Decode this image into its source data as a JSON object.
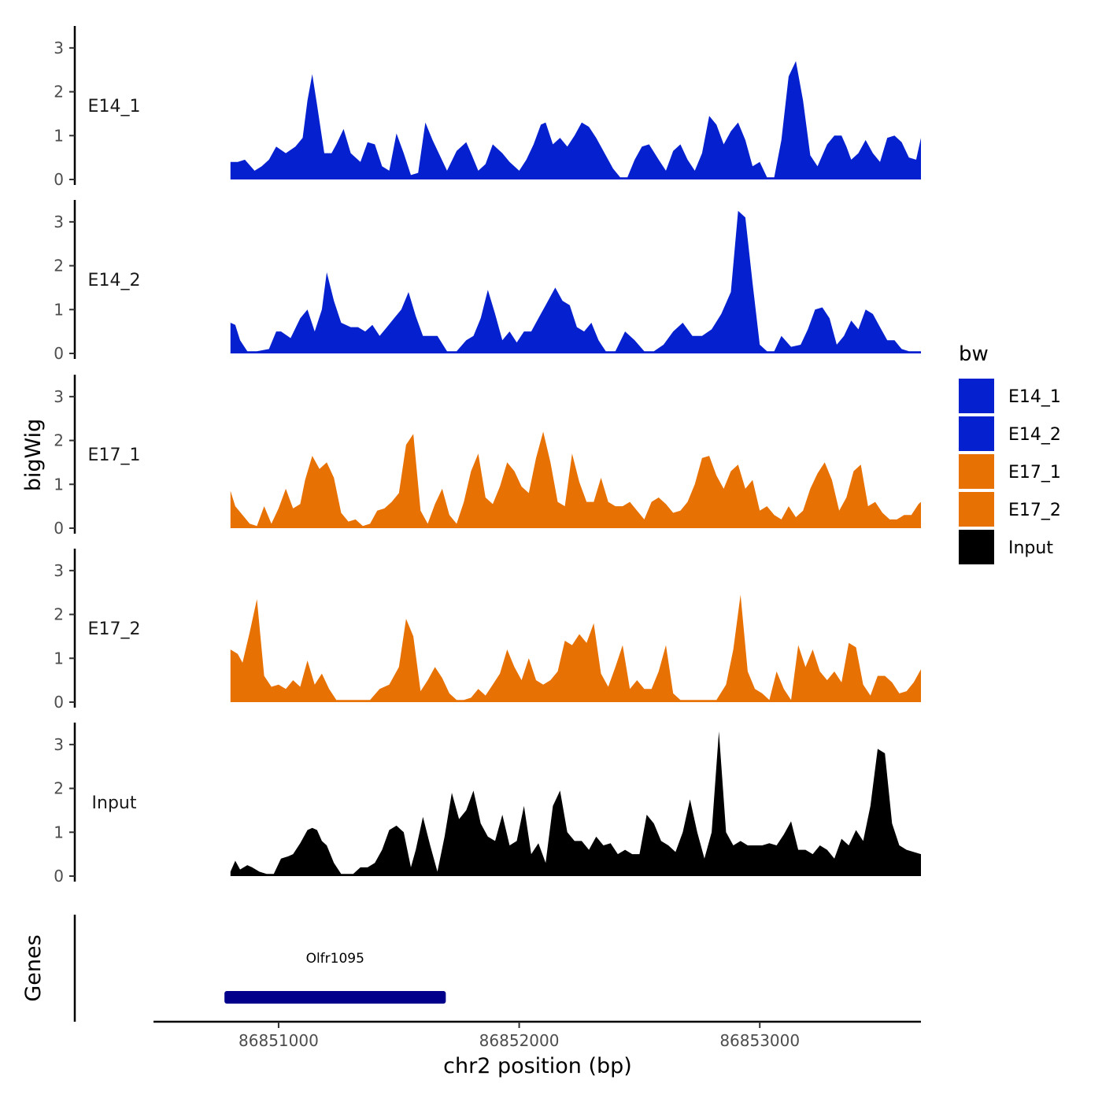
{
  "chart_data": {
    "type": "area",
    "layout": "stacked genome tracks",
    "chromosome": "chr2",
    "xlabel": "chr2 position (bp)",
    "ylabel": "bigWig",
    "genes_panel_label": "Genes",
    "xlim": [
      86850480,
      86853670
    ],
    "xticks": [
      86851000,
      86852000,
      86853000
    ],
    "xtick_labels": [
      "86851000",
      "86852000",
      "86853000"
    ],
    "ylim": [
      0,
      3.5
    ],
    "yticks": [
      0,
      1,
      2,
      3
    ],
    "ytick_labels": [
      "0",
      "1",
      "2",
      "3"
    ],
    "legend": {
      "title": "bw",
      "position": "right",
      "entries": [
        {
          "label": "E14_1",
          "color": "#0420CF"
        },
        {
          "label": "E14_2",
          "color": "#0420CF"
        },
        {
          "label": "E17_1",
          "color": "#E87103"
        },
        {
          "label": "E17_2",
          "color": "#E87103"
        },
        {
          "label": "Input",
          "color": "#000000"
        }
      ]
    },
    "series": [
      {
        "name": "E14_1",
        "color": "#0420CF",
        "x": [
          86850800,
          86850830,
          86850860,
          86850900,
          86850930,
          86850960,
          86850990,
          86851030,
          86851070,
          86851100,
          86851120,
          86851140,
          86851160,
          86851190,
          86851220,
          86851240,
          86851270,
          86851300,
          86851340,
          86851370,
          86851400,
          86851430,
          86851460,
          86851490,
          86851520,
          86851550,
          86851580,
          86851610,
          86851640,
          86851670,
          86851700,
          86851740,
          86851780,
          86851800,
          86851830,
          86851860,
          86851890,
          86851930,
          86851960,
          86852000,
          86852030,
          86852060,
          86852090,
          86852110,
          86852140,
          86852170,
          86852200,
          86852230,
          86852260,
          86852290,
          86852320,
          86852360,
          86852390,
          86852420,
          86852450,
          86852480,
          86852510,
          86852540,
          86852580,
          86852610,
          86852640,
          86852670,
          86852700,
          86852730,
          86852760,
          86852790,
          86852820,
          86852850,
          86852880,
          86852910,
          86852940,
          86852970,
          86853000,
          86853030,
          86853060,
          86853090,
          86853120,
          86853150,
          86853180,
          86853210,
          86853240,
          86853280,
          86853310,
          86853340,
          86853360,
          86853380,
          86853410,
          86853440,
          86853470,
          86853500,
          86853530,
          86853560,
          86853590,
          86853620,
          86853650,
          86853670
        ],
        "values": [
          0.4,
          0.4,
          0.45,
          0.2,
          0.3,
          0.45,
          0.75,
          0.6,
          0.75,
          0.95,
          1.8,
          2.4,
          1.7,
          0.6,
          0.6,
          0.8,
          1.15,
          0.6,
          0.4,
          0.85,
          0.8,
          0.3,
          0.2,
          1.05,
          0.6,
          0.1,
          0.15,
          1.3,
          0.9,
          0.55,
          0.2,
          0.65,
          0.85,
          0.6,
          0.2,
          0.35,
          0.8,
          0.6,
          0.4,
          0.2,
          0.45,
          0.8,
          1.25,
          1.3,
          0.8,
          0.95,
          0.75,
          1.0,
          1.3,
          1.2,
          0.95,
          0.55,
          0.25,
          0.05,
          0.05,
          0.45,
          0.75,
          0.8,
          0.45,
          0.2,
          0.65,
          0.8,
          0.45,
          0.2,
          0.6,
          1.45,
          1.25,
          0.8,
          1.1,
          1.3,
          0.9,
          0.3,
          0.4,
          0.05,
          0.05,
          0.9,
          2.35,
          2.7,
          1.8,
          0.55,
          0.3,
          0.8,
          1.0,
          1.0,
          0.75,
          0.45,
          0.6,
          0.9,
          0.6,
          0.4,
          0.95,
          1.0,
          0.85,
          0.5,
          0.45,
          0.95
        ]
      },
      {
        "name": "E14_2",
        "color": "#0420CF",
        "x": [
          86850800,
          86850820,
          86850840,
          86850870,
          86850910,
          86850960,
          86850990,
          86851010,
          86851050,
          86851090,
          86851120,
          86851150,
          86851180,
          86851200,
          86851230,
          86851260,
          86851300,
          86851330,
          86851360,
          86851390,
          86851420,
          86851450,
          86851480,
          86851510,
          86851540,
          86851570,
          86851600,
          86851630,
          86851660,
          86851700,
          86851740,
          86851780,
          86851810,
          86851840,
          86851870,
          86851900,
          86851930,
          86851960,
          86851990,
          86852020,
          86852050,
          86852080,
          86852110,
          86852150,
          86852180,
          86852210,
          86852240,
          86852270,
          86852300,
          86852330,
          86852360,
          86852400,
          86852440,
          86852480,
          86852520,
          86852560,
          86852600,
          86852640,
          86852680,
          86852720,
          86852760,
          86852800,
          86852840,
          86852880,
          86852910,
          86852940,
          86852970,
          86853000,
          86853030,
          86853060,
          86853090,
          86853130,
          86853170,
          86853200,
          86853230,
          86853260,
          86853290,
          86853320,
          86853350,
          86853380,
          86853410,
          86853440,
          86853470,
          86853500,
          86853530,
          86853560,
          86853590,
          86853620,
          86853650,
          86853670
        ],
        "values": [
          0.7,
          0.65,
          0.3,
          0.05,
          0.05,
          0.1,
          0.5,
          0.5,
          0.35,
          0.8,
          1.0,
          0.5,
          1.0,
          1.85,
          1.2,
          0.7,
          0.6,
          0.6,
          0.5,
          0.65,
          0.4,
          0.6,
          0.8,
          1.0,
          1.4,
          0.85,
          0.4,
          0.4,
          0.4,
          0.05,
          0.05,
          0.3,
          0.4,
          0.8,
          1.45,
          0.9,
          0.3,
          0.5,
          0.25,
          0.5,
          0.5,
          0.8,
          1.1,
          1.5,
          1.2,
          1.1,
          0.6,
          0.5,
          0.7,
          0.3,
          0.05,
          0.05,
          0.5,
          0.3,
          0.05,
          0.05,
          0.2,
          0.5,
          0.7,
          0.4,
          0.4,
          0.55,
          0.9,
          1.4,
          3.25,
          3.1,
          1.6,
          0.2,
          0.05,
          0.05,
          0.4,
          0.15,
          0.2,
          0.55,
          1.0,
          1.05,
          0.8,
          0.2,
          0.4,
          0.75,
          0.55,
          1.0,
          0.9,
          0.6,
          0.3,
          0.3,
          0.1,
          0.05,
          0.05,
          0.05
        ]
      },
      {
        "name": "E17_1",
        "color": "#E87103",
        "x": [
          86850800,
          86850820,
          86850850,
          86850880,
          86850910,
          86850940,
          86850970,
          86851000,
          86851030,
          86851060,
          86851090,
          86851110,
          86851140,
          86851170,
          86851200,
          86851230,
          86851260,
          86851290,
          86851320,
          86851350,
          86851380,
          86851410,
          86851440,
          86851470,
          86851500,
          86851530,
          86851560,
          86851590,
          86851620,
          86851650,
          86851680,
          86851710,
          86851740,
          86851770,
          86851800,
          86851830,
          86851860,
          86851890,
          86851920,
          86851950,
          86851980,
          86852010,
          86852040,
          86852070,
          86852100,
          86852130,
          86852160,
          86852190,
          86852220,
          86852250,
          86852280,
          86852310,
          86852340,
          86852370,
          86852400,
          86852430,
          86852460,
          86852490,
          86852520,
          86852550,
          86852580,
          86852610,
          86852640,
          86852670,
          86852700,
          86852730,
          86852760,
          86852790,
          86852820,
          86852850,
          86852880,
          86852910,
          86852940,
          86852970,
          86853000,
          86853030,
          86853060,
          86853090,
          86853120,
          86853150,
          86853180,
          86853210,
          86853240,
          86853270,
          86853300,
          86853330,
          86853360,
          86853390,
          86853420,
          86853450,
          86853480,
          86853510,
          86853540,
          86853570,
          86853600,
          86853630,
          86853660,
          86853670
        ],
        "values": [
          0.85,
          0.5,
          0.3,
          0.1,
          0.05,
          0.5,
          0.1,
          0.45,
          0.9,
          0.45,
          0.55,
          1.1,
          1.65,
          1.35,
          1.5,
          1.15,
          0.35,
          0.15,
          0.2,
          0.05,
          0.1,
          0.4,
          0.45,
          0.6,
          0.8,
          1.9,
          2.15,
          0.4,
          0.1,
          0.55,
          0.9,
          0.3,
          0.1,
          0.6,
          1.3,
          1.7,
          0.7,
          0.55,
          0.95,
          1.5,
          1.3,
          0.95,
          0.8,
          1.6,
          2.2,
          1.5,
          0.6,
          0.5,
          1.7,
          1.05,
          0.6,
          0.6,
          1.15,
          0.6,
          0.5,
          0.5,
          0.6,
          0.4,
          0.2,
          0.6,
          0.7,
          0.55,
          0.35,
          0.4,
          0.6,
          1.0,
          1.6,
          1.65,
          1.2,
          0.9,
          1.3,
          1.45,
          0.9,
          1.1,
          0.4,
          0.5,
          0.3,
          0.2,
          0.5,
          0.25,
          0.4,
          0.9,
          1.25,
          1.5,
          1.1,
          0.4,
          0.7,
          1.3,
          1.45,
          0.5,
          0.6,
          0.35,
          0.2,
          0.2,
          0.3,
          0.3,
          0.55,
          0.6
        ]
      },
      {
        "name": "E17_2",
        "color": "#E87103",
        "x": [
          86850800,
          86850830,
          86850850,
          86850880,
          86850910,
          86850940,
          86850970,
          86851000,
          86851030,
          86851060,
          86851090,
          86851120,
          86851150,
          86851180,
          86851210,
          86851240,
          86851270,
          86851300,
          86851340,
          86851380,
          86851420,
          86851460,
          86851500,
          86851530,
          86851560,
          86851590,
          86851620,
          86851650,
          86851680,
          86851710,
          86851740,
          86851770,
          86851800,
          86851830,
          86851860,
          86851890,
          86851920,
          86851950,
          86851980,
          86852010,
          86852040,
          86852070,
          86852100,
          86852130,
          86852160,
          86852190,
          86852220,
          86852250,
          86852280,
          86852310,
          86852340,
          86852370,
          86852400,
          86852430,
          86852460,
          86852490,
          86852520,
          86852550,
          86852580,
          86852610,
          86852640,
          86852670,
          86852700,
          86852740,
          86852780,
          86852820,
          86852860,
          86852890,
          86852920,
          86852950,
          86852980,
          86853010,
          86853040,
          86853070,
          86853100,
          86853130,
          86853160,
          86853190,
          86853220,
          86853250,
          86853280,
          86853310,
          86853340,
          86853370,
          86853400,
          86853430,
          86853460,
          86853490,
          86853520,
          86853550,
          86853580,
          86853610,
          86853640,
          86853670
        ],
        "values": [
          1.2,
          1.1,
          0.9,
          1.6,
          2.35,
          0.6,
          0.35,
          0.4,
          0.3,
          0.5,
          0.35,
          0.95,
          0.4,
          0.65,
          0.3,
          0.05,
          0.05,
          0.05,
          0.05,
          0.05,
          0.3,
          0.4,
          0.8,
          1.9,
          1.5,
          0.25,
          0.5,
          0.8,
          0.55,
          0.2,
          0.05,
          0.05,
          0.1,
          0.3,
          0.15,
          0.4,
          0.65,
          1.2,
          0.8,
          0.5,
          1.0,
          0.5,
          0.4,
          0.5,
          0.7,
          1.4,
          1.3,
          1.55,
          1.35,
          1.8,
          0.65,
          0.35,
          0.8,
          1.3,
          0.3,
          0.5,
          0.3,
          0.3,
          0.7,
          1.3,
          0.2,
          0.05,
          0.05,
          0.05,
          0.05,
          0.05,
          0.4,
          1.2,
          2.45,
          0.7,
          0.3,
          0.2,
          0.05,
          0.7,
          0.3,
          0.05,
          1.3,
          0.8,
          1.2,
          0.7,
          0.5,
          0.7,
          0.45,
          1.35,
          1.25,
          0.4,
          0.15,
          0.6,
          0.6,
          0.45,
          0.2,
          0.25,
          0.45,
          0.75
        ]
      },
      {
        "name": "Input",
        "color": "#000000",
        "x": [
          86850800,
          86850820,
          86850840,
          86850870,
          86850890,
          86850920,
          86850950,
          86850980,
          86851010,
          86851040,
          86851060,
          86851090,
          86851120,
          86851140,
          86851160,
          86851180,
          86851200,
          86851230,
          86851260,
          86851290,
          86851310,
          86851340,
          86851370,
          86851400,
          86851430,
          86851460,
          86851490,
          86851520,
          86851550,
          86851570,
          86851600,
          86851630,
          86851660,
          86851690,
          86851720,
          86851750,
          86851780,
          86851810,
          86851840,
          86851870,
          86851900,
          86851930,
          86851960,
          86851990,
          86852020,
          86852050,
          86852080,
          86852110,
          86852140,
          86852170,
          86852200,
          86852230,
          86852260,
          86852290,
          86852320,
          86852350,
          86852380,
          86852410,
          86852440,
          86852470,
          86852500,
          86852530,
          86852560,
          86852590,
          86852620,
          86852650,
          86852680,
          86852710,
          86852740,
          86852770,
          86852800,
          86852830,
          86852860,
          86852890,
          86852920,
          86852950,
          86852980,
          86853010,
          86853040,
          86853070,
          86853100,
          86853130,
          86853160,
          86853190,
          86853220,
          86853250,
          86853280,
          86853310,
          86853340,
          86853370,
          86853400,
          86853430,
          86853460,
          86853490,
          86853520,
          86853550,
          86853580,
          86853610,
          86853640,
          86853670
        ],
        "values": [
          0.1,
          0.35,
          0.15,
          0.25,
          0.2,
          0.1,
          0.05,
          0.05,
          0.4,
          0.45,
          0.5,
          0.75,
          1.05,
          1.1,
          1.05,
          0.8,
          0.7,
          0.3,
          0.05,
          0.05,
          0.05,
          0.2,
          0.2,
          0.3,
          0.6,
          1.05,
          1.15,
          1.0,
          0.2,
          0.6,
          1.35,
          0.7,
          0.1,
          0.9,
          1.9,
          1.3,
          1.5,
          1.95,
          1.2,
          0.9,
          0.8,
          1.4,
          0.7,
          0.8,
          1.6,
          0.5,
          0.75,
          0.3,
          1.6,
          1.95,
          1.0,
          0.8,
          0.8,
          0.6,
          0.9,
          0.7,
          0.75,
          0.5,
          0.6,
          0.5,
          0.5,
          1.4,
          1.2,
          0.8,
          0.7,
          0.55,
          1.0,
          1.75,
          1.0,
          0.4,
          1.0,
          3.3,
          1.0,
          0.7,
          0.8,
          0.7,
          0.7,
          0.7,
          0.75,
          0.7,
          0.95,
          1.25,
          0.6,
          0.6,
          0.5,
          0.7,
          0.6,
          0.4,
          0.85,
          0.7,
          1.05,
          0.8,
          1.6,
          2.9,
          2.8,
          1.2,
          0.7,
          0.6,
          0.55,
          0.5
        ]
      }
    ],
    "genes": [
      {
        "name": "Olfr1095",
        "start": 86850775,
        "end": 86851695,
        "color": "#00008B"
      }
    ]
  }
}
